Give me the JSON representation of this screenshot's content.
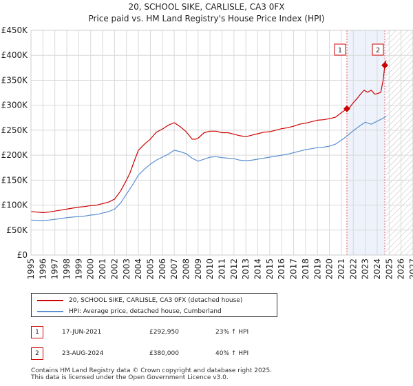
{
  "chart_data": {
    "type": "line",
    "title": "20, SCHOOL SIKE, CARLISLE, CA3 0FX",
    "subtitle": "Price paid vs. HM Land Registry's House Price Index (HPI)",
    "xlabel": "",
    "ylabel": "",
    "xlim": [
      1995,
      2027
    ],
    "ylim": [
      0,
      450000
    ],
    "x_ticks": [
      "1995",
      "1996",
      "1997",
      "1998",
      "1999",
      "2000",
      "2001",
      "2002",
      "2003",
      "2004",
      "2005",
      "2006",
      "2007",
      "2008",
      "2009",
      "2010",
      "2011",
      "2012",
      "2013",
      "2014",
      "2015",
      "2016",
      "2017",
      "2018",
      "2019",
      "2020",
      "2021",
      "2022",
      "2023",
      "2024",
      "2025",
      "2026",
      "2027"
    ],
    "y_ticks": [
      {
        "value": 0,
        "label": "£0"
      },
      {
        "value": 50000,
        "label": "£50K"
      },
      {
        "value": 100000,
        "label": "£100K"
      },
      {
        "value": 150000,
        "label": "£150K"
      },
      {
        "value": 200000,
        "label": "£200K"
      },
      {
        "value": 250000,
        "label": "£250K"
      },
      {
        "value": 300000,
        "label": "£300K"
      },
      {
        "value": 350000,
        "label": "£350K"
      },
      {
        "value": 400000,
        "label": "£400K"
      },
      {
        "value": 450000,
        "label": "£450K"
      }
    ],
    "grid": true,
    "highlight_region": {
      "from": 2021.46,
      "to": 2024.64
    },
    "future_hatch_from": 2024.75,
    "series": [
      {
        "name": "20, SCHOOL SIKE, CARLISLE, CA3 0FX (detached house)",
        "color": "#cc0000",
        "x": [
          1995.0,
          1995.5,
          1996.0,
          1996.5,
          1997.0,
          1997.5,
          1998.0,
          1998.5,
          1999.0,
          1999.5,
          2000.0,
          2000.5,
          2001.0,
          2001.5,
          2002.0,
          2002.5,
          2003.0,
          2003.3,
          2003.6,
          2004.0,
          2004.5,
          2005.0,
          2005.5,
          2006.0,
          2006.5,
          2007.0,
          2007.5,
          2008.0,
          2008.5,
          2008.8,
          2009.0,
          2009.5,
          2010.0,
          2010.5,
          2011.0,
          2011.5,
          2012.0,
          2012.5,
          2013.0,
          2013.5,
          2014.0,
          2014.5,
          2015.0,
          2015.5,
          2016.0,
          2016.5,
          2017.0,
          2017.5,
          2018.0,
          2018.5,
          2019.0,
          2019.5,
          2020.0,
          2020.5,
          2021.0,
          2021.46,
          2021.7,
          2022.0,
          2022.3,
          2022.6,
          2022.9,
          2023.2,
          2023.5,
          2023.8,
          2024.1,
          2024.3,
          2024.5,
          2024.64,
          2024.75
        ],
        "values": [
          87000,
          86000,
          85000,
          86000,
          88000,
          90000,
          92000,
          94000,
          96000,
          97000,
          99000,
          100000,
          103000,
          106000,
          112000,
          128000,
          150000,
          165000,
          185000,
          210000,
          222000,
          232000,
          246000,
          252000,
          260000,
          265000,
          257000,
          247000,
          232000,
          232000,
          234000,
          245000,
          248000,
          248000,
          245000,
          245000,
          242000,
          239000,
          237000,
          240000,
          243000,
          246000,
          247000,
          250000,
          253000,
          255000,
          258000,
          262000,
          264000,
          267000,
          270000,
          271000,
          273000,
          276000,
          285000,
          292950,
          296000,
          305000,
          313000,
          322000,
          330000,
          326000,
          330000,
          322000,
          324000,
          326000,
          350000,
          380000,
          390000
        ]
      },
      {
        "name": "HPI: Average price, detached house, Cumberland",
        "color": "#5b8fd0",
        "x": [
          1995.0,
          1995.5,
          1996.0,
          1996.5,
          1997.0,
          1997.5,
          1998.0,
          1998.5,
          1999.0,
          1999.5,
          2000.0,
          2000.5,
          2001.0,
          2001.5,
          2002.0,
          2002.5,
          2003.0,
          2003.5,
          2004.0,
          2004.5,
          2005.0,
          2005.5,
          2006.0,
          2006.5,
          2007.0,
          2007.5,
          2008.0,
          2008.5,
          2009.0,
          2009.5,
          2010.0,
          2010.5,
          2011.0,
          2011.5,
          2012.0,
          2012.5,
          2013.0,
          2013.5,
          2014.0,
          2014.5,
          2015.0,
          2015.5,
          2016.0,
          2016.5,
          2017.0,
          2017.5,
          2018.0,
          2018.5,
          2019.0,
          2019.5,
          2020.0,
          2020.5,
          2021.0,
          2021.5,
          2022.0,
          2022.5,
          2023.0,
          2023.5,
          2024.0,
          2024.5,
          2024.75
        ],
        "values": [
          70000,
          69500,
          69000,
          70000,
          71500,
          73000,
          75000,
          76000,
          77000,
          78000,
          80000,
          81000,
          84000,
          87000,
          92000,
          104000,
          122000,
          140000,
          160000,
          172000,
          182000,
          190000,
          196000,
          202000,
          210000,
          207000,
          203000,
          194000,
          188000,
          192000,
          196000,
          197000,
          195000,
          194000,
          193000,
          190000,
          189000,
          190000,
          192000,
          194000,
          196000,
          198000,
          200000,
          202000,
          205000,
          208000,
          211000,
          213000,
          215000,
          216000,
          218000,
          222000,
          230000,
          239000,
          249000,
          258000,
          266000,
          262000,
          268000,
          274000,
          278000
        ]
      }
    ],
    "sales": [
      {
        "label": "1",
        "x": 2021.46,
        "value": 292950
      },
      {
        "label": "2",
        "x": 2024.64,
        "value": 380000
      }
    ]
  },
  "legend": {
    "property_label": "20, SCHOOL SIKE, CARLISLE, CA3 0FX (detached house)",
    "hpi_label": "HPI: Average price, detached house, Cumberland"
  },
  "transactions": [
    {
      "num": "1",
      "date": "17-JUN-2021",
      "price": "£292,950",
      "hpi": "23% ↑ HPI"
    },
    {
      "num": "2",
      "date": "23-AUG-2024",
      "price": "£380,000",
      "hpi": "40% ↑ HPI"
    }
  ],
  "footer": {
    "line1": "Contains HM Land Registry data © Crown copyright and database right 2025.",
    "line2": "This data is licensed under the Open Government Licence v3.0."
  },
  "colors": {
    "property": "#cc0000",
    "hpi": "#5b8fd0",
    "highlight": "#eef2fb",
    "grid": "#d9d9d9"
  }
}
